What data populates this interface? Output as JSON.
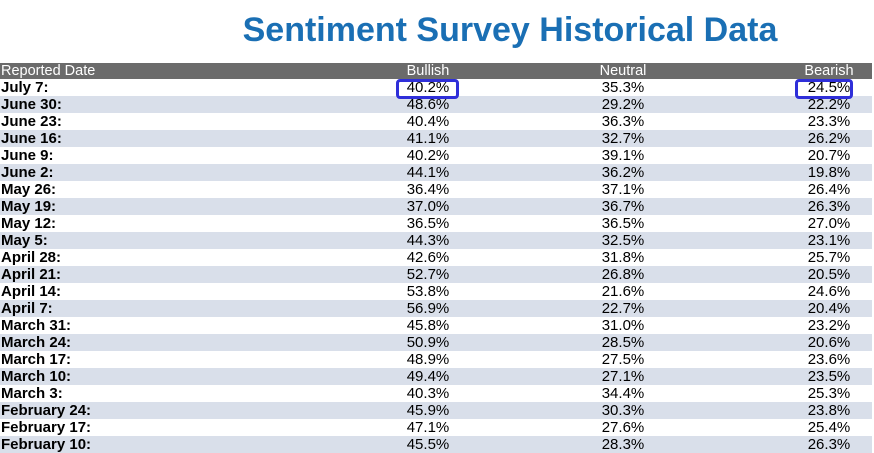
{
  "title": "Sentiment Survey Historical Data",
  "columns": {
    "date": "Reported Date",
    "bullish": "Bullish",
    "neutral": "Neutral",
    "bearish": "Bearish"
  },
  "rows": [
    {
      "date": "July 7:",
      "bullish": "40.2%",
      "neutral": "35.3%",
      "bearish": "24.5%"
    },
    {
      "date": "June 30:",
      "bullish": "48.6%",
      "neutral": "29.2%",
      "bearish": "22.2%"
    },
    {
      "date": "June 23:",
      "bullish": "40.4%",
      "neutral": "36.3%",
      "bearish": "23.3%"
    },
    {
      "date": "June 16:",
      "bullish": "41.1%",
      "neutral": "32.7%",
      "bearish": "26.2%"
    },
    {
      "date": "June 9:",
      "bullish": "40.2%",
      "neutral": "39.1%",
      "bearish": "20.7%"
    },
    {
      "date": "June 2:",
      "bullish": "44.1%",
      "neutral": "36.2%",
      "bearish": "19.8%"
    },
    {
      "date": "May 26:",
      "bullish": "36.4%",
      "neutral": "37.1%",
      "bearish": "26.4%"
    },
    {
      "date": "May 19:",
      "bullish": "37.0%",
      "neutral": "36.7%",
      "bearish": "26.3%"
    },
    {
      "date": "May 12:",
      "bullish": "36.5%",
      "neutral": "36.5%",
      "bearish": "27.0%"
    },
    {
      "date": "May 5:",
      "bullish": "44.3%",
      "neutral": "32.5%",
      "bearish": "23.1%"
    },
    {
      "date": "April 28:",
      "bullish": "42.6%",
      "neutral": "31.8%",
      "bearish": "25.7%"
    },
    {
      "date": "April 21:",
      "bullish": "52.7%",
      "neutral": "26.8%",
      "bearish": "20.5%"
    },
    {
      "date": "April 14:",
      "bullish": "53.8%",
      "neutral": "21.6%",
      "bearish": "24.6%"
    },
    {
      "date": "April 7:",
      "bullish": "56.9%",
      "neutral": "22.7%",
      "bearish": "20.4%"
    },
    {
      "date": "March 31:",
      "bullish": "45.8%",
      "neutral": "31.0%",
      "bearish": "23.2%"
    },
    {
      "date": "March 24:",
      "bullish": "50.9%",
      "neutral": "28.5%",
      "bearish": "20.6%"
    },
    {
      "date": "March 17:",
      "bullish": "48.9%",
      "neutral": "27.5%",
      "bearish": "23.6%"
    },
    {
      "date": "March 10:",
      "bullish": "49.4%",
      "neutral": "27.1%",
      "bearish": "23.5%"
    },
    {
      "date": "March 3:",
      "bullish": "40.3%",
      "neutral": "34.4%",
      "bearish": "25.3%"
    },
    {
      "date": "February 24:",
      "bullish": "45.9%",
      "neutral": "30.3%",
      "bearish": "23.8%"
    },
    {
      "date": "February 17:",
      "bullish": "47.1%",
      "neutral": "27.6%",
      "bearish": "25.4%"
    },
    {
      "date": "February 10:",
      "bullish": "45.5%",
      "neutral": "28.3%",
      "bearish": "26.3%"
    }
  ],
  "colors": {
    "title": "#1a6fb4",
    "header_bg": "#6b6b6b",
    "row_alt_bg": "#d9dfea",
    "highlight": "#2f2fd9"
  }
}
